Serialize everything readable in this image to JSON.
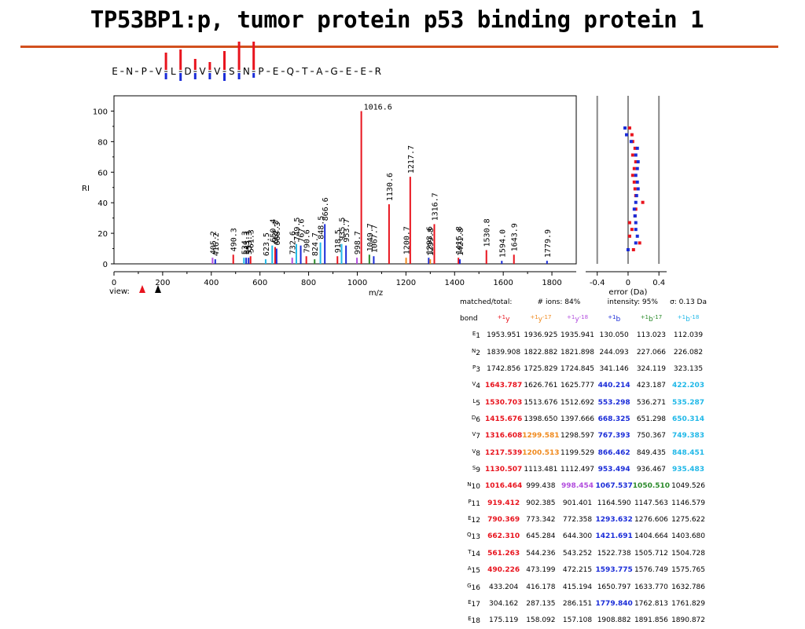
{
  "title": "TP53BP1:p, tumor protein p53 binding protein 1",
  "sequence": {
    "residues": [
      "E",
      "N",
      "P",
      "V",
      "L",
      "D",
      "V",
      "V",
      "S",
      "N",
      "P",
      "E",
      "Q",
      "T",
      "A",
      "G",
      "E",
      "E",
      "R"
    ]
  },
  "colors": {
    "y": "#e8141e",
    "y17": "#f08a1e",
    "y18": "#b24dde",
    "b": "#1a2cd8",
    "b17": "#2a8a2a",
    "b18": "#20b8e8",
    "rule": "#d2501e"
  },
  "chart_data": {
    "type": "bar",
    "xlabel": "m/z",
    "ylabel": "RI",
    "xlim": [
      0,
      1900
    ],
    "ylim": [
      0,
      110
    ],
    "xticks": [
      0,
      200,
      400,
      600,
      800,
      1000,
      1200,
      1400,
      1600,
      1800
    ],
    "yticks": [
      0,
      20,
      40,
      60,
      80,
      100
    ],
    "view_label": "view:",
    "peaks": [
      {
        "mz": 405.2,
        "ri": 4,
        "ion": "y18",
        "label": "405.2"
      },
      {
        "mz": 416.2,
        "ri": 3,
        "ion": "b",
        "label": "416.2"
      },
      {
        "mz": 490.3,
        "ri": 6,
        "ion": "y",
        "label": "490.3"
      },
      {
        "mz": 534.3,
        "ri": 4,
        "ion": "b18",
        "label": "534.3"
      },
      {
        "mz": 543.3,
        "ri": 4,
        "ion": "b",
        "label": "543.3"
      },
      {
        "mz": 553.3,
        "ri": 4,
        "ion": "b",
        "label": "553.3"
      },
      {
        "mz": 561.3,
        "ri": 5,
        "ion": "y",
        "label": "561.3"
      },
      {
        "mz": 623.5,
        "ri": 3,
        "ion": "b18",
        "label": "623.5"
      },
      {
        "mz": 650.4,
        "ri": 12,
        "ion": "b18",
        "label": "650.4"
      },
      {
        "mz": 662.3,
        "ri": 11,
        "ion": "y",
        "label": "662.3"
      },
      {
        "mz": 668.3,
        "ri": 10,
        "ion": "b",
        "label": "668.3"
      },
      {
        "mz": 732.6,
        "ri": 4,
        "ion": "y18",
        "label": "732.6"
      },
      {
        "mz": 749.5,
        "ri": 13,
        "ion": "b18",
        "label": "749.5"
      },
      {
        "mz": 767.6,
        "ri": 12,
        "ion": "b",
        "label": "767.6"
      },
      {
        "mz": 790.6,
        "ri": 5,
        "ion": "y",
        "label": "790.6"
      },
      {
        "mz": 824.7,
        "ri": 3,
        "ion": "b17",
        "label": "824.7"
      },
      {
        "mz": 848.5,
        "ri": 14,
        "ion": "b18",
        "label": "848.5"
      },
      {
        "mz": 866.6,
        "ri": 26,
        "ion": "b",
        "label": "866.6"
      },
      {
        "mz": 918.5,
        "ri": 5,
        "ion": "y",
        "label": "918.5"
      },
      {
        "mz": 935.5,
        "ri": 13,
        "ion": "b18",
        "label": "935.5"
      },
      {
        "mz": 953.7,
        "ri": 12,
        "ion": "b",
        "label": "953.7"
      },
      {
        "mz": 998.7,
        "ri": 4,
        "ion": "y18",
        "label": "998.7"
      },
      {
        "mz": 1016.6,
        "ri": 100,
        "ion": "y",
        "label": "1016.6"
      },
      {
        "mz": 1049.7,
        "ri": 6,
        "ion": "b17",
        "label": "1049.7"
      },
      {
        "mz": 1067.7,
        "ri": 5,
        "ion": "b",
        "label": "1067.7"
      },
      {
        "mz": 1130.6,
        "ri": 39,
        "ion": "y",
        "label": "1130.6"
      },
      {
        "mz": 1200.7,
        "ri": 4,
        "ion": "y17",
        "label": "1200.7"
      },
      {
        "mz": 1217.7,
        "ri": 57,
        "ion": "y",
        "label": "1217.7"
      },
      {
        "mz": 1293.6,
        "ri": 4,
        "ion": "b",
        "label": "1293.6"
      },
      {
        "mz": 1299.8,
        "ri": 3,
        "ion": "y17",
        "label": "1299.8"
      },
      {
        "mz": 1316.7,
        "ri": 26,
        "ion": "y",
        "label": "1316.7"
      },
      {
        "mz": 1415.8,
        "ri": 4,
        "ion": "y",
        "label": "1415.8"
      },
      {
        "mz": 1421.8,
        "ri": 3,
        "ion": "b",
        "label": "1421.8"
      },
      {
        "mz": 1530.8,
        "ri": 9,
        "ion": "y",
        "label": "1530.8"
      },
      {
        "mz": 1594.0,
        "ri": 2,
        "ion": "b",
        "label": "1594.0"
      },
      {
        "mz": 1643.9,
        "ri": 6,
        "ion": "y",
        "label": "1643.9"
      },
      {
        "mz": 1779.9,
        "ri": 2,
        "ion": "b",
        "label": "1779.9"
      }
    ],
    "error_panel": {
      "xlabel": "error (Da)",
      "xlim": [
        -0.55,
        0.5
      ],
      "xticks": [
        -0.4,
        0,
        0.4
      ],
      "xtick_labels": [
        "-0.4",
        "0",
        "0.4"
      ],
      "points_y": [
        0.02,
        0.05,
        0.06,
        0.09,
        0.06,
        0.1,
        0.08,
        0.06,
        0.08,
        0.09,
        0.1,
        0.19,
        0.1,
        0.09,
        0.02,
        0.05,
        0.02,
        0.15,
        0.07
      ],
      "points_b": [
        -0.04,
        -0.02,
        0.04,
        0.12,
        0.1,
        0.13,
        0.12,
        0.1,
        0.12,
        0.13,
        0.11,
        0.1,
        0.08,
        0.09,
        0.1,
        0.1,
        0.12,
        0.1,
        0.0
      ]
    }
  },
  "table": {
    "summary": {
      "matched": "matched/total:",
      "ions": "# ions: 84%",
      "intensity": "intensity: 95%",
      "sigma": "σ: 0.13 Da"
    },
    "headers": {
      "bond": "bond",
      "y": "y",
      "y17": "y",
      "y18": "y",
      "b": "b",
      "b17": "b",
      "b18": "b",
      "plus": "+1",
      "m17": "-17",
      "m18": "-18"
    },
    "rows": [
      {
        "res": "E",
        "n": "1",
        "y": "1953.951",
        "y17": "1936.925",
        "y18": "1935.941",
        "b": "130.050",
        "b17": "113.023",
        "b18": "112.039",
        "hl": []
      },
      {
        "res": "N",
        "n": "2",
        "y": "1839.908",
        "y17": "1822.882",
        "y18": "1821.898",
        "b": "244.093",
        "b17": "227.066",
        "b18": "226.082",
        "hl": []
      },
      {
        "res": "P",
        "n": "3",
        "y": "1742.856",
        "y17": "1725.829",
        "y18": "1724.845",
        "b": "341.146",
        "b17": "324.119",
        "b18": "323.135",
        "hl": []
      },
      {
        "res": "V",
        "n": "4",
        "y": "1643.787",
        "y17": "1626.761",
        "y18": "1625.777",
        "b": "440.214",
        "b17": "423.187",
        "b18": "422.203",
        "hl": [
          "y",
          "b",
          "b18"
        ]
      },
      {
        "res": "L",
        "n": "5",
        "y": "1530.703",
        "y17": "1513.676",
        "y18": "1512.692",
        "b": "553.298",
        "b17": "536.271",
        "b18": "535.287",
        "hl": [
          "y",
          "b",
          "b18"
        ]
      },
      {
        "res": "D",
        "n": "6",
        "y": "1415.676",
        "y17": "1398.650",
        "y18": "1397.666",
        "b": "668.325",
        "b17": "651.298",
        "b18": "650.314",
        "hl": [
          "y",
          "b",
          "b18"
        ]
      },
      {
        "res": "V",
        "n": "7",
        "y": "1316.608",
        "y17": "1299.581",
        "y18": "1298.597",
        "b": "767.393",
        "b17": "750.367",
        "b18": "749.383",
        "hl": [
          "y",
          "y17",
          "b",
          "b18"
        ]
      },
      {
        "res": "V",
        "n": "8",
        "y": "1217.539",
        "y17": "1200.513",
        "y18": "1199.529",
        "b": "866.462",
        "b17": "849.435",
        "b18": "848.451",
        "hl": [
          "y",
          "y17",
          "b",
          "b18"
        ]
      },
      {
        "res": "S",
        "n": "9",
        "y": "1130.507",
        "y17": "1113.481",
        "y18": "1112.497",
        "b": "953.494",
        "b17": "936.467",
        "b18": "935.483",
        "hl": [
          "y",
          "b",
          "b18"
        ]
      },
      {
        "res": "N",
        "n": "10",
        "y": "1016.464",
        "y17": "999.438",
        "y18": "998.454",
        "b": "1067.537",
        "b17": "1050.510",
        "b18": "1049.526",
        "hl": [
          "y",
          "y18",
          "b",
          "b17"
        ]
      },
      {
        "res": "P",
        "n": "11",
        "y": "919.412",
        "y17": "902.385",
        "y18": "901.401",
        "b": "1164.590",
        "b17": "1147.563",
        "b18": "1146.579",
        "hl": [
          "y"
        ]
      },
      {
        "res": "E",
        "n": "12",
        "y": "790.369",
        "y17": "773.342",
        "y18": "772.358",
        "b": "1293.632",
        "b17": "1276.606",
        "b18": "1275.622",
        "hl": [
          "y",
          "b"
        ]
      },
      {
        "res": "Q",
        "n": "13",
        "y": "662.310",
        "y17": "645.284",
        "y18": "644.300",
        "b": "1421.691",
        "b17": "1404.664",
        "b18": "1403.680",
        "hl": [
          "y",
          "b"
        ]
      },
      {
        "res": "T",
        "n": "14",
        "y": "561.263",
        "y17": "544.236",
        "y18": "543.252",
        "b": "1522.738",
        "b17": "1505.712",
        "b18": "1504.728",
        "hl": [
          "y"
        ]
      },
      {
        "res": "A",
        "n": "15",
        "y": "490.226",
        "y17": "473.199",
        "y18": "472.215",
        "b": "1593.775",
        "b17": "1576.749",
        "b18": "1575.765",
        "hl": [
          "y",
          "b"
        ]
      },
      {
        "res": "G",
        "n": "16",
        "y": "433.204",
        "y17": "416.178",
        "y18": "415.194",
        "b": "1650.797",
        "b17": "1633.770",
        "b18": "1632.786",
        "hl": []
      },
      {
        "res": "E",
        "n": "17",
        "y": "304.162",
        "y17": "287.135",
        "y18": "286.151",
        "b": "1779.840",
        "b17": "1762.813",
        "b18": "1761.829",
        "hl": [
          "b"
        ]
      },
      {
        "res": "E",
        "n": "18",
        "y": "175.119",
        "y17": "158.092",
        "y18": "157.108",
        "b": "1908.882",
        "b17": "1891.856",
        "b18": "1890.872",
        "hl": []
      }
    ]
  }
}
